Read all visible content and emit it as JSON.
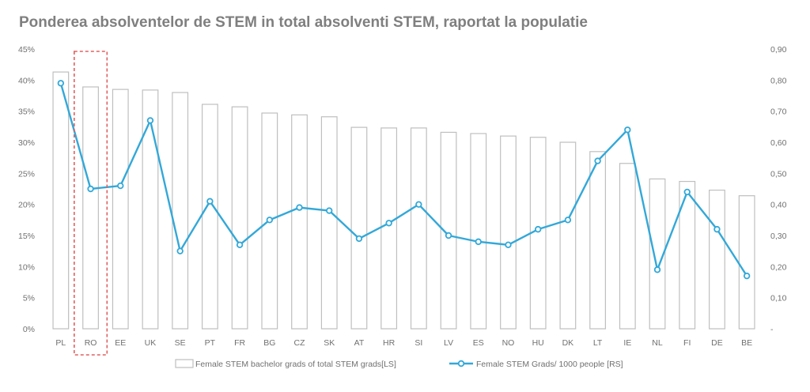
{
  "title": "Ponderea absolventelor de STEM in total absolventi STEM, raportat la populatie",
  "colors": {
    "title": "#7f7f7f",
    "bar_fill": "#ffffff",
    "bar_stroke": "#bfbfbf",
    "line": "#33a8d8",
    "axis_text": "#707070",
    "highlight": "#e06060"
  },
  "chart_data": {
    "type": "bar+line",
    "categories": [
      "PL",
      "RO",
      "EE",
      "UK",
      "SE",
      "PT",
      "FR",
      "BG",
      "CZ",
      "SK",
      "AT",
      "HR",
      "SI",
      "LV",
      "ES",
      "NO",
      "HU",
      "DK",
      "LT",
      "IE",
      "NL",
      "FI",
      "DE",
      "BE"
    ],
    "series": [
      {
        "name": "Female STEM bachelor grads of total STEM grads[LS]",
        "type": "bar",
        "axis": "left",
        "values": [
          41.3,
          38.9,
          38.5,
          38.4,
          38.0,
          36.1,
          35.7,
          34.7,
          34.4,
          34.1,
          32.4,
          32.3,
          32.3,
          31.6,
          31.4,
          31.0,
          30.8,
          30.0,
          28.5,
          26.6,
          24.1,
          23.7,
          22.3,
          21.4
        ]
      },
      {
        "name": "Female STEM Grads/ 1000 people [RS]",
        "type": "line",
        "axis": "right",
        "values": [
          0.79,
          0.45,
          0.46,
          0.67,
          0.25,
          0.41,
          0.27,
          0.35,
          0.39,
          0.38,
          0.29,
          0.34,
          0.4,
          0.3,
          0.28,
          0.27,
          0.32,
          0.35,
          0.54,
          0.64,
          0.19,
          0.44,
          0.32,
          0.17
        ]
      }
    ],
    "left_axis": {
      "ylim": [
        0,
        45
      ],
      "ticks": [
        "0%",
        "5%",
        "10%",
        "15%",
        "20%",
        "25%",
        "30%",
        "35%",
        "40%",
        "45%"
      ]
    },
    "right_axis": {
      "ylim": [
        0,
        0.9
      ],
      "ticks": [
        "-",
        "0,10",
        "0,20",
        "0,30",
        "0,40",
        "0,50",
        "0,60",
        "0,70",
        "0,80",
        "0,90"
      ]
    },
    "highlighted_category": "RO",
    "grid": false,
    "legend_position": "bottom"
  }
}
